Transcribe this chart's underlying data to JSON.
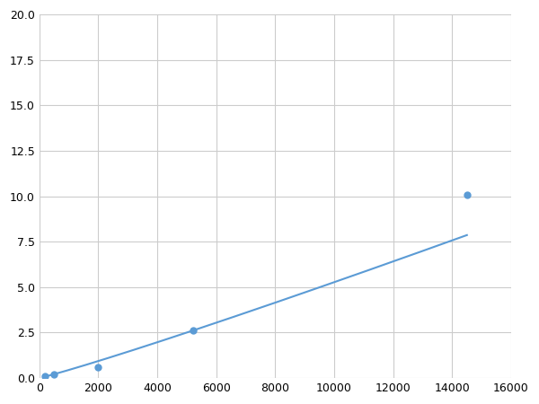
{
  "x": [
    200,
    500,
    2000,
    5200,
    14500
  ],
  "y": [
    0.1,
    0.2,
    0.6,
    2.6,
    10.1
  ],
  "line_color": "#5b9bd5",
  "marker_color": "#5b9bd5",
  "marker_style": "o",
  "marker_size": 5,
  "line_width": 1.5,
  "xlim": [
    0,
    16000
  ],
  "ylim": [
    0,
    20
  ],
  "xticks": [
    0,
    2000,
    4000,
    6000,
    8000,
    10000,
    12000,
    14000,
    16000
  ],
  "yticks": [
    0.0,
    2.5,
    5.0,
    7.5,
    10.0,
    12.5,
    15.0,
    17.5,
    20.0
  ],
  "grid": true,
  "background_color": "#ffffff",
  "figure_bg_color": "#ffffff"
}
